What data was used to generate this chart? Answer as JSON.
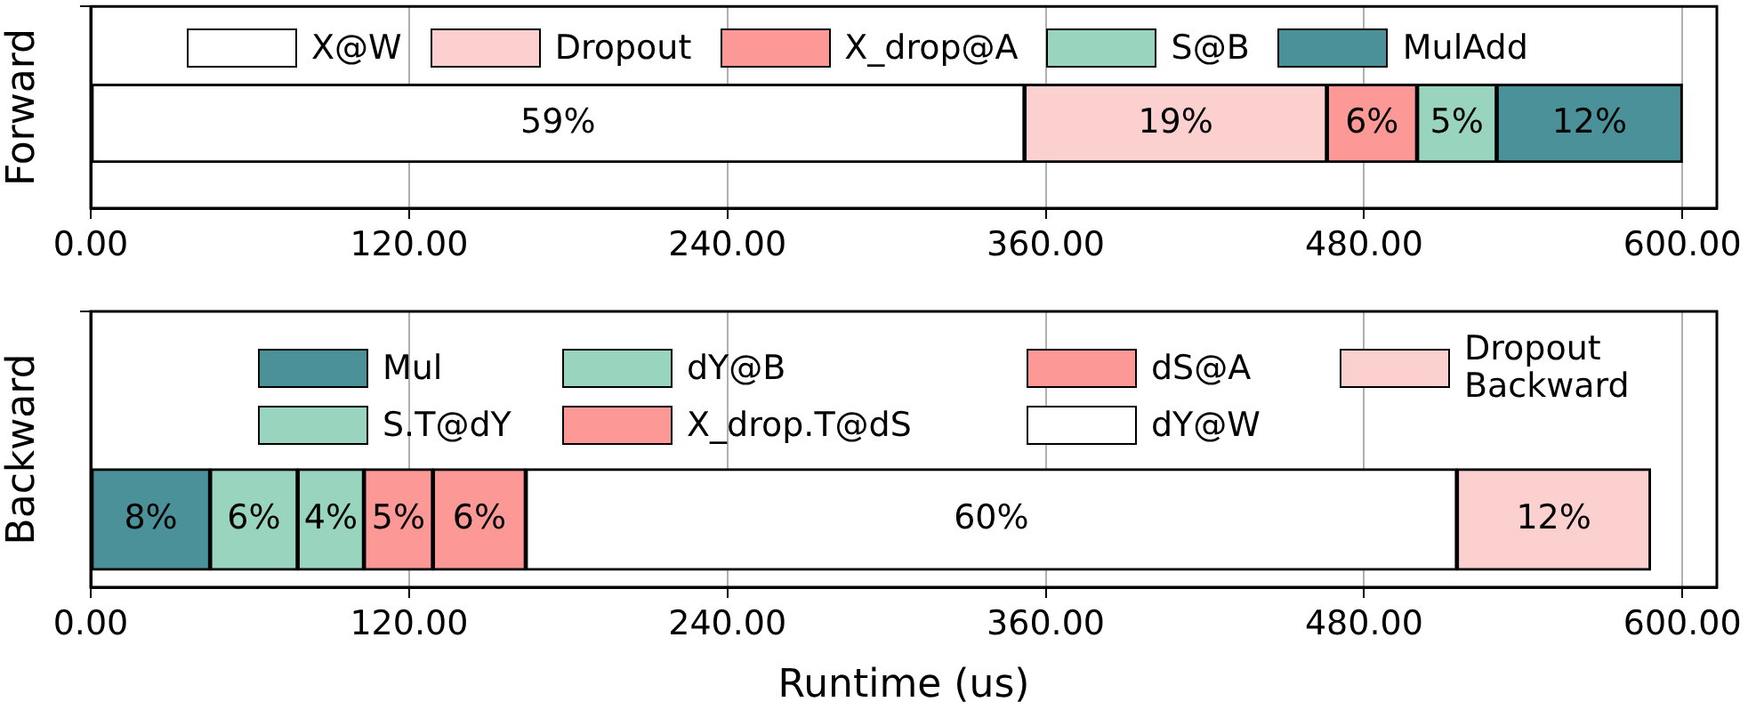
{
  "chart_data": [
    {
      "type": "bar",
      "orientation": "horizontal",
      "stacked": true,
      "ylabel": "Forward",
      "categories": [
        null
      ],
      "legend": "top",
      "grid": "x",
      "xlim": [
        0,
        613
      ],
      "xticks": [
        {
          "value": 0,
          "label": "0.00"
        },
        {
          "value": 120,
          "label": "120.00"
        },
        {
          "value": 240,
          "label": "240.00"
        },
        {
          "value": 360,
          "label": "360.00"
        },
        {
          "value": 480,
          "label": "480.00"
        },
        {
          "value": 600,
          "label": "600.00"
        }
      ],
      "series": [
        {
          "name": "X@W",
          "color": "#ffffff",
          "values": [
            352
          ]
        },
        {
          "name": "Dropout",
          "color": "#fdd0d0",
          "values": [
            114
          ]
        },
        {
          "name": "X_drop@A",
          "color": "#fc9896",
          "values": [
            34
          ]
        },
        {
          "name": "S@B",
          "color": "#99d4bf",
          "values": [
            30
          ]
        },
        {
          "name": "MulAdd",
          "color": "#4a9199",
          "values": [
            70
          ]
        }
      ],
      "annotations": [
        "59%",
        "19%",
        "6%",
        "5%",
        "12%"
      ]
    },
    {
      "type": "bar",
      "orientation": "horizontal",
      "stacked": true,
      "ylabel": "Backward",
      "xlabel": "Runtime (us)",
      "categories": [
        null
      ],
      "legend": "top",
      "grid": "x",
      "xlim": [
        0,
        613
      ],
      "xticks": [
        {
          "value": 0,
          "label": "0.00"
        },
        {
          "value": 120,
          "label": "120.00"
        },
        {
          "value": 240,
          "label": "240.00"
        },
        {
          "value": 360,
          "label": "360.00"
        },
        {
          "value": 480,
          "label": "480.00"
        },
        {
          "value": 600,
          "label": "600.00"
        }
      ],
      "series": [
        {
          "name": "Mul",
          "color": "#4a9199",
          "values": [
            45
          ]
        },
        {
          "name": "S.T@dY",
          "color": "#99d4bf",
          "values": [
            33
          ]
        },
        {
          "name": "dY@B",
          "color": "#99d4bf",
          "values": [
            25
          ]
        },
        {
          "name": "X_drop.T@dS",
          "color": "#fc9896",
          "values": [
            26
          ]
        },
        {
          "name": "dS@A",
          "color": "#fc9896",
          "values": [
            35
          ]
        },
        {
          "name": "dY@W",
          "color": "#ffffff",
          "values": [
            351
          ]
        },
        {
          "name": "Dropout Backward",
          "color": "#fdd0d0",
          "values": [
            73
          ]
        }
      ],
      "annotations": [
        "8%",
        "6%",
        "4%",
        "5%",
        "6%",
        "60%",
        "12%"
      ]
    }
  ]
}
